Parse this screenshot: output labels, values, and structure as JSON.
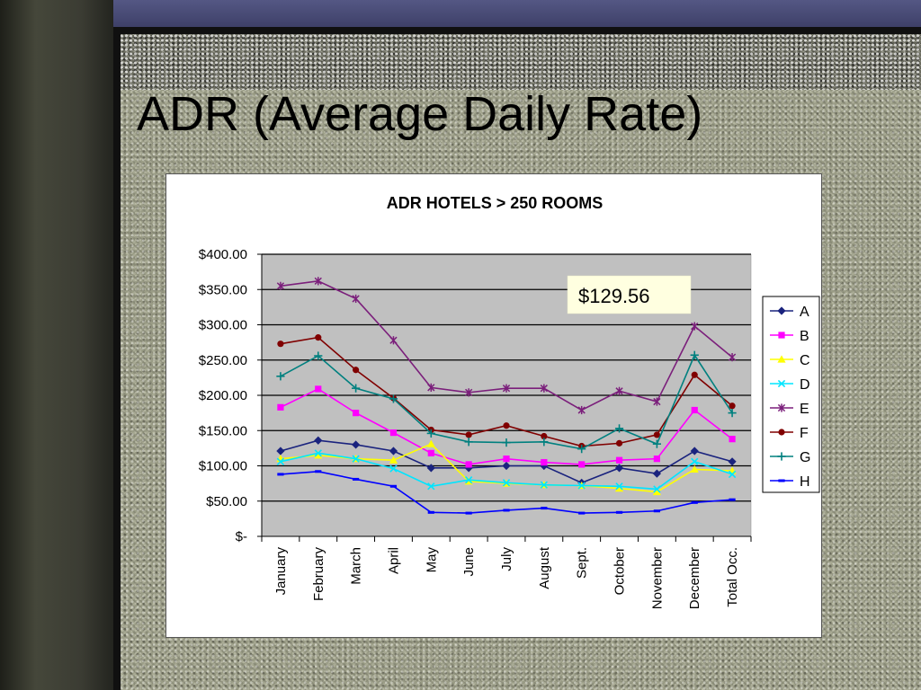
{
  "slide": {
    "title": "ADR (Average Daily Rate)"
  },
  "chart_data": {
    "type": "line",
    "title": "ADR HOTELS > 250 ROOMS",
    "xlabel": "",
    "ylabel": "",
    "categories": [
      "January",
      "February",
      "March",
      "April",
      "May",
      "June",
      "July",
      "August",
      "Sept.",
      "October",
      "November",
      "December",
      "Total Occ."
    ],
    "y_ticks": [
      0,
      50,
      100,
      150,
      200,
      250,
      300,
      350,
      400
    ],
    "y_tick_labels": [
      "$-",
      "$50.00",
      "$100.00",
      "$150.00",
      "$200.00",
      "$250.00",
      "$300.00",
      "$350.00",
      "$400.00"
    ],
    "ylim": [
      0,
      400
    ],
    "grid": "horizontal",
    "plot_background": "#c0c0c0",
    "legend_position": "right",
    "annotation": "$129.56",
    "series": [
      {
        "name": "A",
        "color": "#1a237e",
        "marker": "diamond",
        "values": [
          121,
          136,
          130,
          121,
          97,
          97,
          100,
          100,
          76,
          97,
          89,
          121,
          106
        ]
      },
      {
        "name": "B",
        "color": "#ff00ff",
        "marker": "square",
        "values": [
          183,
          209,
          175,
          147,
          118,
          102,
          110,
          105,
          102,
          108,
          110,
          179,
          138
        ]
      },
      {
        "name": "C",
        "color": "#ffff00",
        "marker": "triangle",
        "values": [
          110,
          115,
          110,
          108,
          131,
          78,
          75,
          73,
          72,
          68,
          63,
          95,
          93
        ]
      },
      {
        "name": "D",
        "color": "#00e5ff",
        "marker": "x",
        "values": [
          106,
          118,
          110,
          96,
          71,
          80,
          76,
          73,
          72,
          71,
          67,
          106,
          88
        ]
      },
      {
        "name": "E",
        "color": "#7b1f7b",
        "marker": "star",
        "values": [
          355,
          362,
          337,
          278,
          211,
          204,
          210,
          210,
          179,
          206,
          191,
          298,
          254
        ]
      },
      {
        "name": "F",
        "color": "#800000",
        "marker": "circle",
        "values": [
          273,
          282,
          236,
          196,
          151,
          144,
          157,
          142,
          128,
          132,
          144,
          229,
          185
        ]
      },
      {
        "name": "G",
        "color": "#00807f",
        "marker": "plus",
        "values": [
          227,
          256,
          210,
          195,
          146,
          134,
          133,
          134,
          124,
          153,
          131,
          257,
          175
        ]
      },
      {
        "name": "H",
        "color": "#0000ff",
        "marker": "dash",
        "values": [
          88,
          92,
          81,
          71,
          34,
          33,
          37,
          40,
          33,
          34,
          36,
          48,
          52
        ]
      }
    ]
  }
}
